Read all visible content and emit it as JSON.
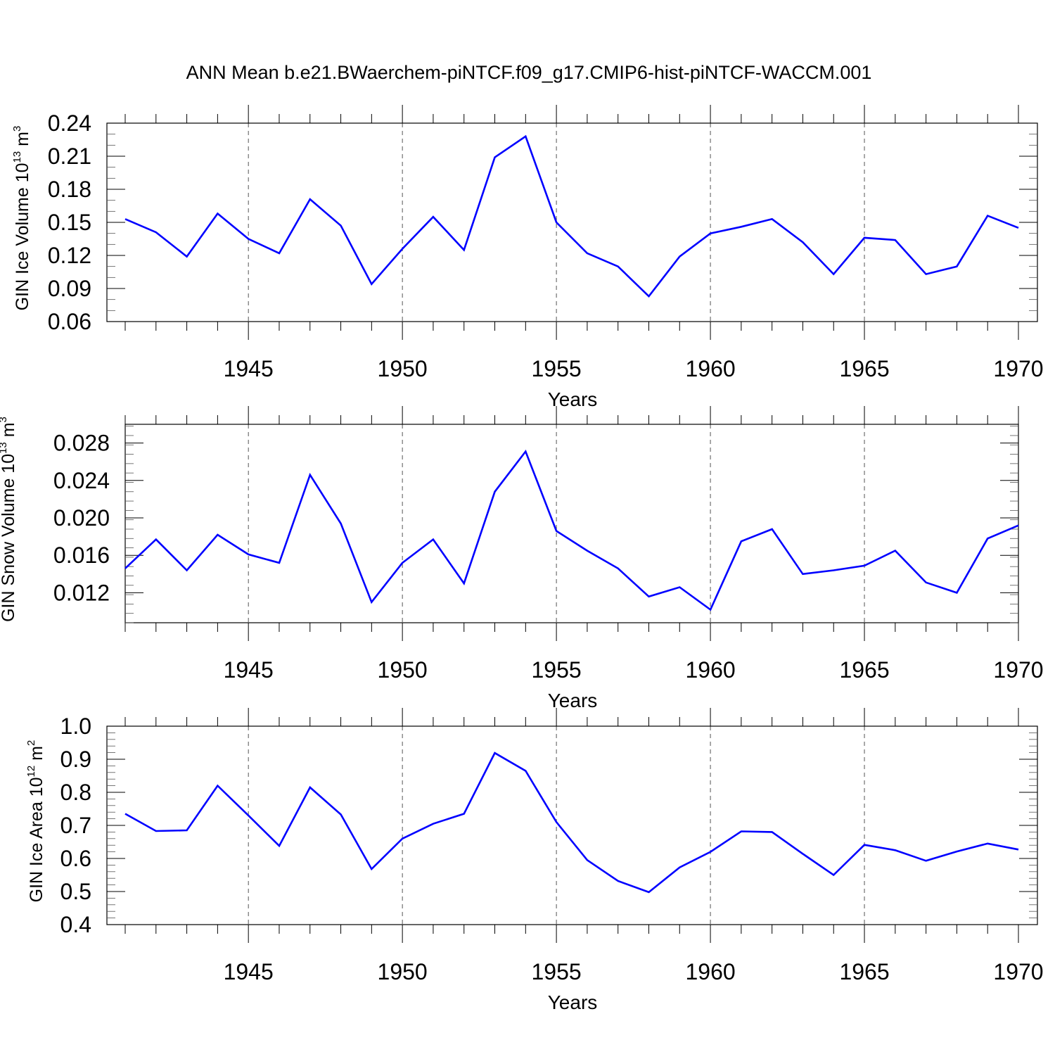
{
  "title": "ANN Mean b.e21.BWaerchem-piNTCF.f09_g17.CMIP6-hist-piNTCF-WACCM.001",
  "style": {
    "line_color": "#0000ff",
    "axis_color": "#000000",
    "grid_color": "#555555"
  },
  "chart_data": [
    {
      "type": "line",
      "ylabel": {
        "text": "GIN Ice Volume 10",
        "exponent": "13",
        "unit": " m",
        "unit_exponent": "3"
      },
      "xlabel": "Years",
      "xlim": [
        1941,
        1970
      ],
      "ylim": [
        0.06,
        0.24
      ],
      "y_ticks": [
        "0.06",
        "0.09",
        "0.12",
        "0.15",
        "0.18",
        "0.21",
        "0.24"
      ],
      "x_ticks": [
        "1945",
        "1950",
        "1955",
        "1960",
        "1965",
        "1970"
      ],
      "x": [
        1941,
        1942,
        1943,
        1944,
        1945,
        1946,
        1947,
        1948,
        1949,
        1950,
        1951,
        1952,
        1953,
        1954,
        1955,
        1956,
        1957,
        1958,
        1959,
        1960,
        1961,
        1962,
        1963,
        1964,
        1965,
        1966,
        1967,
        1968,
        1969,
        1970
      ],
      "values": [
        0.153,
        0.141,
        0.119,
        0.158,
        0.135,
        0.122,
        0.171,
        0.147,
        0.094,
        0.126,
        0.155,
        0.125,
        0.209,
        0.228,
        0.15,
        0.122,
        0.11,
        0.083,
        0.119,
        0.14,
        0.146,
        0.153,
        0.132,
        0.103,
        0.136,
        0.134,
        0.103,
        0.11,
        0.156,
        0.145
      ]
    },
    {
      "type": "line",
      "ylabel": {
        "text": "GIN Snow Volume 10",
        "exponent": "13",
        "unit": " m",
        "unit_exponent": "3"
      },
      "xlabel": "Years",
      "xlim": [
        1941,
        1970
      ],
      "ylim": [
        0.0088,
        0.03
      ],
      "y_ticks": [
        "0.012",
        "0.016",
        "0.020",
        "0.024",
        "0.028"
      ],
      "x_ticks": [
        "1945",
        "1950",
        "1955",
        "1960",
        "1965",
        "1970"
      ],
      "x": [
        1941,
        1942,
        1943,
        1944,
        1945,
        1946,
        1947,
        1948,
        1949,
        1950,
        1951,
        1952,
        1953,
        1954,
        1955,
        1956,
        1957,
        1958,
        1959,
        1960,
        1961,
        1962,
        1963,
        1964,
        1965,
        1966,
        1967,
        1968,
        1969,
        1970
      ],
      "values": [
        0.0146,
        0.0177,
        0.0144,
        0.0182,
        0.0161,
        0.0152,
        0.0246,
        0.0194,
        0.011,
        0.0152,
        0.0177,
        0.013,
        0.0228,
        0.0271,
        0.0186,
        0.0165,
        0.0146,
        0.0116,
        0.0126,
        0.0102,
        0.0175,
        0.0188,
        0.014,
        0.0144,
        0.0149,
        0.0165,
        0.0131,
        0.012,
        0.0178,
        0.0192
      ]
    },
    {
      "type": "line",
      "ylabel": {
        "text": "GIN Ice Area 10",
        "exponent": "12",
        "unit": " m",
        "unit_exponent": "2"
      },
      "xlabel": "Years",
      "xlim": [
        1941,
        1970
      ],
      "ylim": [
        0.4,
        1.0
      ],
      "y_ticks": [
        "0.4",
        "0.5",
        "0.6",
        "0.7",
        "0.8",
        "0.9",
        "1.0"
      ],
      "x_ticks": [
        "1945",
        "1950",
        "1955",
        "1960",
        "1965",
        "1970"
      ],
      "x": [
        1941,
        1942,
        1943,
        1944,
        1945,
        1946,
        1947,
        1948,
        1949,
        1950,
        1951,
        1952,
        1953,
        1954,
        1955,
        1956,
        1957,
        1958,
        1959,
        1960,
        1961,
        1962,
        1963,
        1964,
        1965,
        1966,
        1967,
        1968,
        1969,
        1970
      ],
      "values": [
        0.735,
        0.683,
        0.685,
        0.82,
        0.73,
        0.638,
        0.815,
        0.733,
        0.568,
        0.66,
        0.705,
        0.735,
        0.919,
        0.865,
        0.71,
        0.595,
        0.532,
        0.498,
        0.573,
        0.62,
        0.682,
        0.68,
        0.614,
        0.55,
        0.641,
        0.625,
        0.593,
        0.621,
        0.645,
        0.627
      ]
    }
  ]
}
